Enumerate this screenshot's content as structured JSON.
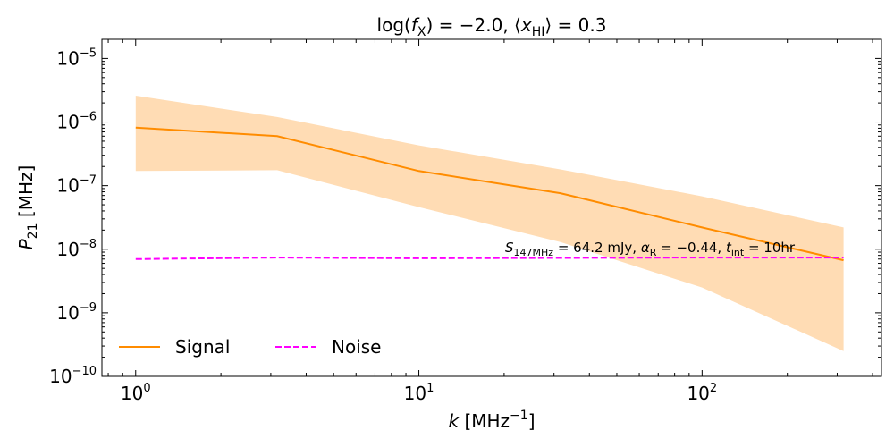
{
  "chart_data": {
    "type": "line",
    "title": "log(f_X) = −2.0, ⟨x_HI⟩ = 0.3",
    "xlabel": "k [MHz^−1]",
    "ylabel": "P_21 [MHz]",
    "xscale": "log",
    "yscale": "log",
    "xlim": [
      0.76,
      430
    ],
    "ylim": [
      1e-10,
      2e-05
    ],
    "x_ticks": [
      {
        "value": 1,
        "base": "10",
        "exp": "0"
      },
      {
        "value": 10,
        "base": "10",
        "exp": "1"
      },
      {
        "value": 100,
        "base": "10",
        "exp": "2"
      }
    ],
    "y_ticks": [
      {
        "value": 1e-10,
        "base": "10",
        "exp": "−10"
      },
      {
        "value": 1e-09,
        "base": "10",
        "exp": "−9"
      },
      {
        "value": 1e-08,
        "base": "10",
        "exp": "−8"
      },
      {
        "value": 1e-07,
        "base": "10",
        "exp": "−7"
      },
      {
        "value": 1e-06,
        "base": "10",
        "exp": "−6"
      },
      {
        "value": 1e-05,
        "base": "10",
        "exp": "−5"
      }
    ],
    "series": [
      {
        "name": "Signal",
        "style": "solid",
        "color": "#ff8c00",
        "x": [
          1,
          3.16,
          10,
          31.6,
          100,
          316
        ],
        "y": [
          8.2e-07,
          6e-07,
          1.7e-07,
          7.6e-08,
          2.2e-08,
          6.7e-09
        ],
        "band": {
          "color": "#ffdcb4",
          "upper": [
            2.6e-06,
            1.2e-06,
            4.3e-07,
            1.8e-07,
            6.8e-08,
            2.2e-08
          ],
          "lower": [
            1.7e-07,
            1.75e-07,
            4.6e-08,
            1.3e-08,
            2.5e-09,
            2.5e-10
          ]
        }
      },
      {
        "name": "Noise",
        "style": "dashed",
        "color": "#ff00ff",
        "x": [
          1,
          3.16,
          10,
          31.6,
          100,
          316
        ],
        "y": [
          7e-09,
          7.4e-09,
          7.2e-09,
          7.3e-09,
          7.4e-09,
          7.4e-09
        ]
      }
    ],
    "legend": {
      "placement": "lower-left",
      "ncol": 2
    },
    "annotation": {
      "s_sym": "S",
      "s_sub": "147MHz",
      "s_val": " = 64.2 mJy, ",
      "a_sym": "α",
      "a_sub": "R",
      "a_val": " = −0.44, ",
      "t_sym": "t",
      "t_sub": "int",
      "t_val": " = 10hr"
    },
    "title_parts": {
      "p1": "log(",
      "f_sym": "f",
      "f_sub": "X",
      "p2": ") = −2.0, ⟨",
      "x_sym": "x",
      "x_sub": "HI",
      "p3": "⟩ = 0.3"
    },
    "xlabel_parts": {
      "sym": "k",
      "unit": " [MHz",
      "sup": "−1",
      "close": "]"
    },
    "ylabel_parts": {
      "sym": "P",
      "sub": "21",
      "unit": " [MHz]"
    }
  }
}
